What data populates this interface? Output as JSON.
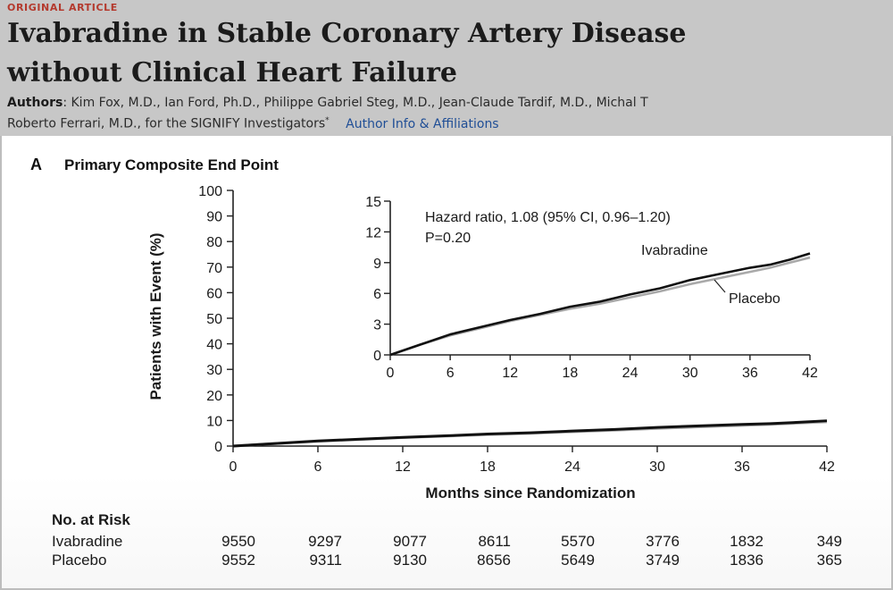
{
  "header": {
    "section_label": "ORIGINAL ARTICLE",
    "title": "Ivabradine in Stable Coronary Artery Disease\nwithout Clinical Heart Failure",
    "authors_label": "Authors",
    "authors_line1": ": Kim Fox, M.D., Ian Ford, Ph.D., Philippe Gabriel Steg, M.D., Jean-Claude Tardif, M.D., Michal T",
    "authors_line2": "Roberto Ferrari, M.D., for the SIGNIFY Investigators",
    "authors_marker": "*",
    "author_info_link": "Author Info & Affiliations"
  },
  "panel": {
    "letter": "A",
    "title": "Primary Composite End Point"
  },
  "chart_data": {
    "type": "line",
    "ylabel": "Patients with Event (%)",
    "xlabel": "Months since Randomization",
    "xlim": [
      0,
      42
    ],
    "ylim": [
      0,
      100
    ],
    "x_ticks": [
      0,
      6,
      12,
      18,
      24,
      30,
      36,
      42
    ],
    "y_ticks": [
      0,
      10,
      20,
      30,
      40,
      50,
      60,
      70,
      80,
      90,
      100
    ],
    "colors": {
      "ivabradine": "#111111",
      "placebo": "#a9a9a9"
    },
    "series": [
      {
        "name": "Ivabradine",
        "x": [
          0,
          3,
          6,
          9,
          12,
          15,
          18,
          21,
          24,
          27,
          30,
          33,
          36,
          38,
          40,
          42
        ],
        "y": [
          0,
          1.0,
          2.0,
          2.7,
          3.4,
          4.0,
          4.7,
          5.2,
          5.9,
          6.5,
          7.3,
          7.9,
          8.5,
          8.8,
          9.3,
          9.9
        ]
      },
      {
        "name": "Placebo",
        "x": [
          0,
          3,
          6,
          9,
          12,
          15,
          18,
          21,
          24,
          27,
          30,
          33,
          36,
          38,
          40,
          42
        ],
        "y": [
          0,
          1.0,
          1.9,
          2.6,
          3.3,
          3.9,
          4.5,
          5.0,
          5.6,
          6.2,
          6.9,
          7.5,
          8.1,
          8.5,
          9.0,
          9.5
        ]
      }
    ],
    "inset": {
      "ylim": [
        0,
        15
      ],
      "y_ticks": [
        0,
        3,
        6,
        9,
        12,
        15
      ],
      "x_ticks": [
        0,
        6,
        12,
        18,
        24,
        30,
        36,
        42
      ],
      "annotation_line1": "Hazard ratio, 1.08 (95% CI, 0.96–1.20)",
      "annotation_line2": "P=0.20",
      "label_ivabradine": "Ivabradine",
      "label_placebo": "Placebo"
    }
  },
  "risk_table": {
    "title": "No. at Risk",
    "rows": [
      {
        "label": "Ivabradine",
        "values": [
          "9550",
          "9297",
          "9077",
          "8611",
          "5570",
          "3776",
          "1832",
          "349"
        ]
      },
      {
        "label": "Placebo",
        "values": [
          "9552",
          "9311",
          "9130",
          "8656",
          "5649",
          "3749",
          "1836",
          "365"
        ]
      }
    ]
  }
}
